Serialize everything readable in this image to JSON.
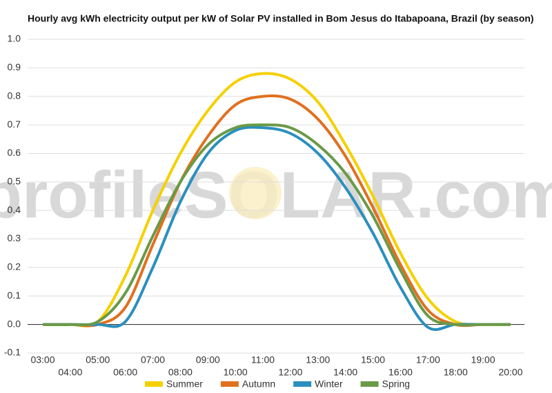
{
  "chart_data": {
    "type": "line",
    "title": "Hourly avg kWh electricity output per kW of Solar PV installed in Bom Jesus do Itabapoana, Brazil (by season)",
    "watermark": "profileSOLAR.com",
    "categories": [
      "03:00",
      "04:00",
      "05:00",
      "06:00",
      "07:00",
      "08:00",
      "09:00",
      "10:00",
      "11:00",
      "12:00",
      "13:00",
      "14:00",
      "15:00",
      "16:00",
      "17:00",
      "18:00",
      "19:00",
      "20:00"
    ],
    "series": [
      {
        "name": "Summer",
        "color": "#f5d000",
        "values": [
          0,
          0,
          0.01,
          0.17,
          0.4,
          0.6,
          0.75,
          0.85,
          0.88,
          0.86,
          0.78,
          0.63,
          0.45,
          0.25,
          0.09,
          0.01,
          0,
          0
        ]
      },
      {
        "name": "Autumn",
        "color": "#e07020",
        "values": [
          0,
          0,
          0,
          0.06,
          0.28,
          0.5,
          0.66,
          0.77,
          0.8,
          0.79,
          0.72,
          0.59,
          0.41,
          0.21,
          0.05,
          0,
          0,
          0
        ]
      },
      {
        "name": "Winter",
        "color": "#2a8fbd",
        "values": [
          0,
          0,
          0,
          0.01,
          0.2,
          0.43,
          0.6,
          0.68,
          0.69,
          0.67,
          0.6,
          0.48,
          0.32,
          0.13,
          -0.01,
          0,
          0,
          0
        ]
      },
      {
        "name": "Spring",
        "color": "#6a9a48",
        "values": [
          0,
          0,
          0.01,
          0.11,
          0.31,
          0.5,
          0.63,
          0.69,
          0.7,
          0.69,
          0.63,
          0.53,
          0.38,
          0.19,
          0.03,
          0,
          0,
          0
        ]
      }
    ],
    "ylim": [
      -0.1,
      1.0
    ],
    "yticks": [
      -0.1,
      {
        "value": 0,
        "label": "0.0"
      },
      0.1,
      0.2,
      0.3,
      0.4,
      0.5,
      0.6,
      0.7,
      0.8,
      0.9,
      {
        "value": 1,
        "label": "1.0"
      }
    ],
    "grid": true,
    "legend": "bottom"
  }
}
